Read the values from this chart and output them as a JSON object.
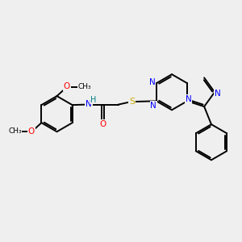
{
  "background_color": "#efefef",
  "bond_color": "#000000",
  "figsize": [
    3.0,
    3.0
  ],
  "dpi": 100,
  "atom_colors": {
    "N": "#0000ff",
    "O": "#ff0000",
    "S": "#ccaa00",
    "C": "#000000",
    "H": "#008080"
  },
  "bond_lw": 1.4,
  "font_size_atom": 7.5,
  "font_size_small": 6.5
}
